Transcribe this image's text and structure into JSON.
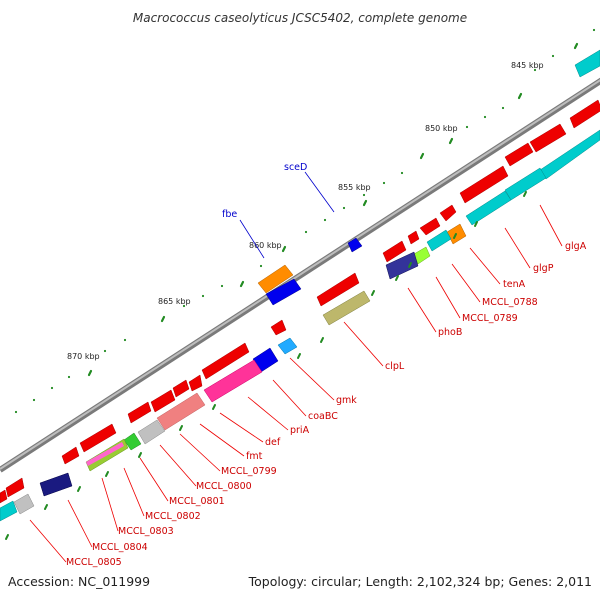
{
  "title": "Macrococcus caseolyticus JCSC5402, complete genome",
  "footer": {
    "accession": "Accession: NC_011999",
    "summary": "Topology: circular; Length: 2,102,324 bp; Genes: 2,011"
  },
  "ruler_labels": [
    "845 kbp",
    "850 kbp",
    "855 kbp",
    "860 kbp",
    "865 kbp",
    "870 kbp"
  ],
  "gene_labels_red": [
    "glgA",
    "glgP",
    "tenA",
    "MCCL_0788",
    "MCCL_0789",
    "phoB",
    "clpL",
    "gmk",
    "coaBC",
    "priA",
    "def",
    "fmt",
    "MCCL_0799",
    "MCCL_0800",
    "MCCL_0801",
    "MCCL_0802",
    "MCCL_0803",
    "MCCL_0804",
    "MCCL_0805"
  ],
  "gene_labels_blue": [
    "sceD",
    "fbe"
  ],
  "colors": {
    "forward_red": "#ff0000",
    "backbone": "#888888",
    "tick_green": "#228b22",
    "cyan": "#00cccc",
    "blue": "#0000ee",
    "navy": "#22227a",
    "orange": "#ff8c00",
    "olive": "#bdb76b",
    "pink": "#ff1493",
    "salmon": "#f08080",
    "gray": "#c0c0c0"
  }
}
